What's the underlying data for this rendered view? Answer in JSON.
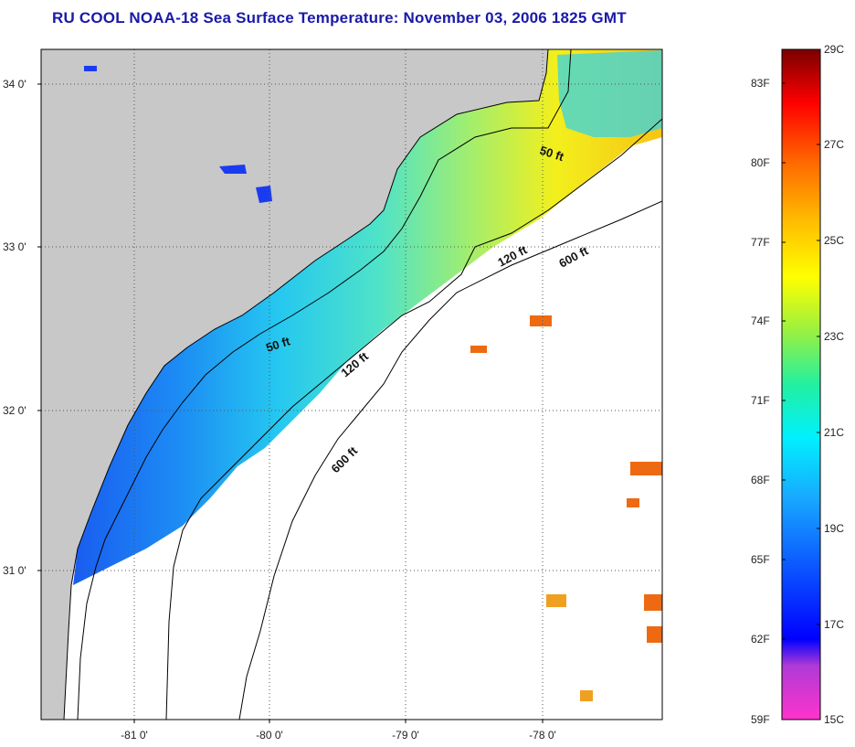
{
  "title": "RU COOL  NOAA-18  Sea Surface Temperature:  November 03, 2006 1825 GMT",
  "map": {
    "lat_labels": [
      "34 0'",
      "33 0'",
      "32 0'",
      "31 0'"
    ],
    "lon_labels": [
      "-81 0'",
      "-80 0'",
      "-79 0'",
      "-78 0'"
    ],
    "contours": [
      {
        "label": "50 ft"
      },
      {
        "label": "50 ft"
      },
      {
        "label": "120 ft"
      },
      {
        "label": "120 ft"
      },
      {
        "label": "600 ft"
      },
      {
        "label": "600 ft"
      }
    ],
    "colors": {
      "land": "#c8c8c8",
      "no_data": "#ffffff",
      "grid": "#555555",
      "coast": "#000000"
    }
  },
  "colorbar": {
    "fahrenheit_labels": [
      "83F",
      "80F",
      "77F",
      "74F",
      "71F",
      "68F",
      "65F",
      "62F",
      "59F"
    ],
    "celsius_labels": [
      "29C",
      "27C",
      "25C",
      "23C",
      "21C",
      "19C",
      "17C",
      "15C"
    ],
    "range_c": [
      15,
      29
    ]
  }
}
